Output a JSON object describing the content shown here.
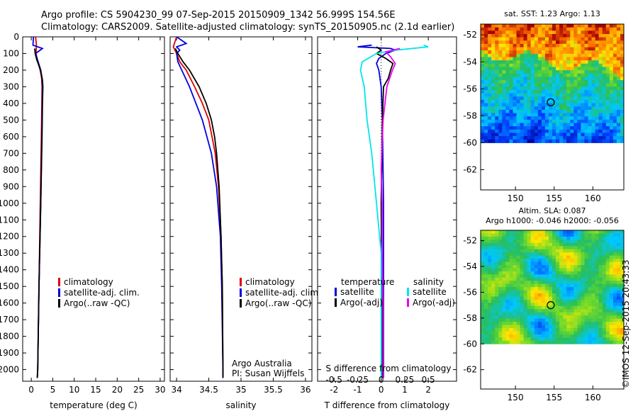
{
  "header": {
    "title_line1": "Argo profile: CS 5904230_99 07-Sep-2015 20150909_1342 56.999S 154.56E",
    "title_line2": "Climatology: CARS2009. Satellite-adjusted climatology: synTS_20150905.nc (2.1d earlier)"
  },
  "watermark": "©IMOS 12-Sep-2015 20:43:33",
  "colors": {
    "climatology": "#dd0000",
    "satellite": "#0000dd",
    "argo": "#000000",
    "satellite_diff": "#00e5ee",
    "argo_adj_diff": "#ee00ee"
  },
  "chart_data": [
    {
      "id": "temperature",
      "type": "line",
      "xlabel": "temperature (deg C)",
      "ylabel": "",
      "xlim": [
        -2,
        31
      ],
      "ylim": [
        2070,
        0
      ],
      "xticks": [
        0,
        5,
        10,
        15,
        20,
        25,
        30
      ],
      "yticks": [
        0,
        100,
        200,
        300,
        400,
        500,
        600,
        700,
        800,
        900,
        1000,
        1100,
        1200,
        1300,
        1400,
        1500,
        1600,
        1700,
        1800,
        1900,
        2000
      ],
      "legend": [
        "climatology",
        "satellite-adj. clim.",
        "Argo(..raw -QC)"
      ],
      "series": [
        {
          "name": "climatology",
          "color": "#dd0000",
          "depth": [
            0,
            50,
            100,
            150,
            200,
            250,
            300,
            500,
            1000,
            1500,
            2000,
            2050
          ],
          "values": [
            1.0,
            1.2,
            1.1,
            1.5,
            2.1,
            2.4,
            2.5,
            2.4,
            2.1,
            1.8,
            1.5,
            1.4
          ]
        },
        {
          "name": "satellite-adj. clim.",
          "color": "#0000dd",
          "depth": [
            0,
            50,
            70,
            100,
            150,
            200,
            250,
            300,
            500,
            1000,
            1500,
            2000,
            2050
          ],
          "values": [
            0.5,
            0.4,
            2.6,
            1.0,
            1.6,
            2.2,
            2.5,
            2.6,
            2.5,
            2.2,
            1.8,
            1.5,
            1.4
          ]
        },
        {
          "name": "Argo(..raw -QC)",
          "color": "#000000",
          "depth": [
            70,
            100,
            140,
            180,
            220,
            260,
            300,
            400,
            600,
            1000,
            1500,
            2000,
            2050
          ],
          "values": [
            0.8,
            0.9,
            1.3,
            1.9,
            2.3,
            2.6,
            2.7,
            2.6,
            2.5,
            2.2,
            1.8,
            1.5,
            1.4
          ]
        }
      ]
    },
    {
      "id": "salinity",
      "type": "line",
      "xlabel": "salinity",
      "xlim": [
        33.9,
        36.1
      ],
      "ylim": [
        2070,
        0
      ],
      "xticks": [
        34,
        34.5,
        35,
        35.5,
        36
      ],
      "legend": [
        "climatology",
        "satellite-adj. clim.",
        "Argo(..raw -QC)"
      ],
      "annotation": [
        "Argo Australia",
        "PI: Susan Wijffels"
      ],
      "series": [
        {
          "name": "climatology",
          "color": "#dd0000",
          "depth": [
            0,
            60,
            100,
            150,
            200,
            300,
            400,
            500,
            700,
            900,
            1200,
            1500,
            2000,
            2050
          ],
          "values": [
            34.0,
            33.95,
            34.0,
            34.05,
            34.15,
            34.28,
            34.4,
            34.5,
            34.6,
            34.65,
            34.69,
            34.71,
            34.72,
            34.72
          ]
        },
        {
          "name": "satellite-adj. clim.",
          "color": "#0000dd",
          "depth": [
            0,
            40,
            60,
            80,
            100,
            150,
            200,
            300,
            400,
            500,
            700,
            900,
            1200,
            1500,
            2000,
            2050
          ],
          "values": [
            34.0,
            34.15,
            34.0,
            34.05,
            34.0,
            34.02,
            34.08,
            34.2,
            34.3,
            34.4,
            34.54,
            34.62,
            34.68,
            34.7,
            34.72,
            34.72
          ]
        },
        {
          "name": "Argo(..raw -QC)",
          "color": "#000000",
          "depth": [
            70,
            100,
            150,
            200,
            300,
            400,
            500,
            600,
            700,
            900,
            1200,
            1500,
            2000,
            2050
          ],
          "values": [
            33.98,
            34.02,
            34.1,
            34.2,
            34.35,
            34.46,
            34.54,
            34.59,
            34.62,
            34.66,
            34.69,
            34.71,
            34.72,
            34.72
          ]
        }
      ]
    },
    {
      "id": "difference",
      "type": "line",
      "xlabel": "T difference from climatology",
      "xlabel_top": "S difference from climatology",
      "xlim": [
        -2.7,
        3.2
      ],
      "ylim": [
        2070,
        0
      ],
      "xticks": [
        -2,
        -1,
        0,
        1,
        2
      ],
      "sticks_labels": [
        "-0.5",
        "-0.25",
        "0",
        "0.25",
        "0.5"
      ],
      "legend_headers": [
        "temperature",
        "salinity"
      ],
      "legend": [
        "satellite",
        "Argo(-adj)",
        "satellite",
        "Argo(-adj)"
      ],
      "series": [
        {
          "name": "T satellite",
          "color": "#0000dd",
          "depth": [
            50,
            60,
            70,
            80,
            100,
            130,
            160,
            200,
            300,
            500,
            1000,
            1500,
            2000,
            2050
          ],
          "values": [
            -0.4,
            -1.0,
            0.4,
            0.6,
            0.2,
            -0.1,
            -0.2,
            -0.1,
            0.0,
            0.05,
            0.1,
            0.1,
            0.1,
            0.1
          ]
        },
        {
          "name": "T Argo(-adj)",
          "color": "#000000",
          "depth": [
            60,
            80,
            100,
            130,
            160,
            200,
            250,
            300,
            500,
            1000,
            1500,
            2000,
            2050
          ],
          "values": [
            -0.2,
            0.0,
            -0.2,
            0.2,
            0.5,
            0.4,
            0.3,
            0.1,
            0.05,
            0.0,
            0.02,
            0.05,
            0.05
          ]
        },
        {
          "name": "S satellite",
          "color": "#00e5ee",
          "depth": [
            50,
            60,
            80,
            100,
            150,
            200,
            300,
            500,
            700,
            1000,
            1300,
            1500,
            2000,
            2050
          ],
          "values": [
            0.45,
            0.5,
            0.15,
            -0.05,
            -0.2,
            -0.22,
            -0.18,
            -0.15,
            -0.1,
            -0.05,
            0.0,
            0.0,
            0.0,
            0.0
          ]
        },
        {
          "name": "S Argo(-adj)",
          "color": "#ee00ee",
          "depth": [
            70,
            90,
            120,
            160,
            200,
            300,
            500,
            800,
            1000,
            1300,
            1600,
            2000,
            2050
          ],
          "values": [
            0.2,
            0.05,
            0.1,
            0.15,
            0.12,
            0.06,
            0.02,
            0.0,
            0.01,
            0.01,
            0.02,
            0.02,
            0.02
          ]
        }
      ]
    },
    {
      "id": "sst_map",
      "type": "heatmap",
      "title": "sat. SST: 1.23  Argo: 1.13",
      "xticks": [
        150,
        155,
        160
      ],
      "yticks": [
        -52,
        -54,
        -56,
        -58,
        -60,
        -62
      ],
      "xlim": [
        145.5,
        164
      ],
      "ylim": [
        -63.5,
        -51.2
      ],
      "data_ylim": [
        -60,
        -51.2
      ],
      "argo_position": {
        "lon": 154.56,
        "lat": -56.999
      }
    },
    {
      "id": "sla_map",
      "type": "heatmap",
      "title": "Altim. SLA: 0.087",
      "subtitle": "Argo h1000: -0.046 h2000: -0.056",
      "xticks": [
        150,
        155,
        160
      ],
      "yticks": [
        -52,
        -54,
        -56,
        -58,
        -60,
        -62
      ],
      "xlim": [
        145.5,
        164
      ],
      "ylim": [
        -63.5,
        -51.2
      ],
      "data_ylim": [
        -60,
        -51.2
      ],
      "argo_position": {
        "lon": 154.56,
        "lat": -56.999
      }
    }
  ]
}
